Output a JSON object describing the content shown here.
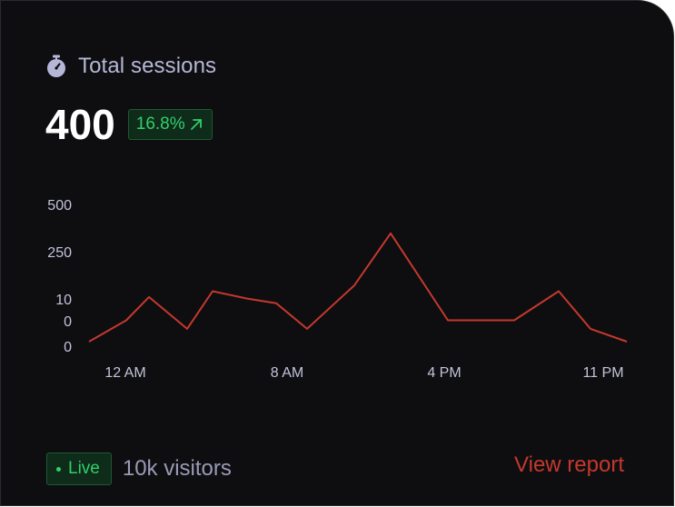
{
  "card": {
    "title": "Total sessions",
    "icon": "stopwatch-icon",
    "value": "400",
    "change": "16.8%",
    "change_icon": "arrow-up-right-icon"
  },
  "footer": {
    "live_label": "Live",
    "visitors": "10k visitors",
    "view_report": "View report"
  },
  "colors": {
    "background": "#0e0e10",
    "accent_green": "#2fd06a",
    "line": "#c5382d",
    "muted_text": "#b6b6d8"
  },
  "chart_data": {
    "type": "line",
    "y_tick_labels": [
      "500",
      "250",
      "10",
      "0",
      "0"
    ],
    "x_tick_labels": [
      "12 AM",
      "8 AM",
      "4 PM",
      "11 PM"
    ],
    "x": [
      0,
      1,
      2,
      3,
      4,
      5,
      6,
      7,
      8,
      9,
      10,
      11,
      12,
      13,
      14,
      15
    ],
    "values": [
      0,
      5,
      20,
      3,
      50,
      12,
      9,
      3,
      80,
      350,
      5,
      5,
      5,
      50,
      3,
      0
    ],
    "grid": false,
    "legend": "none"
  }
}
